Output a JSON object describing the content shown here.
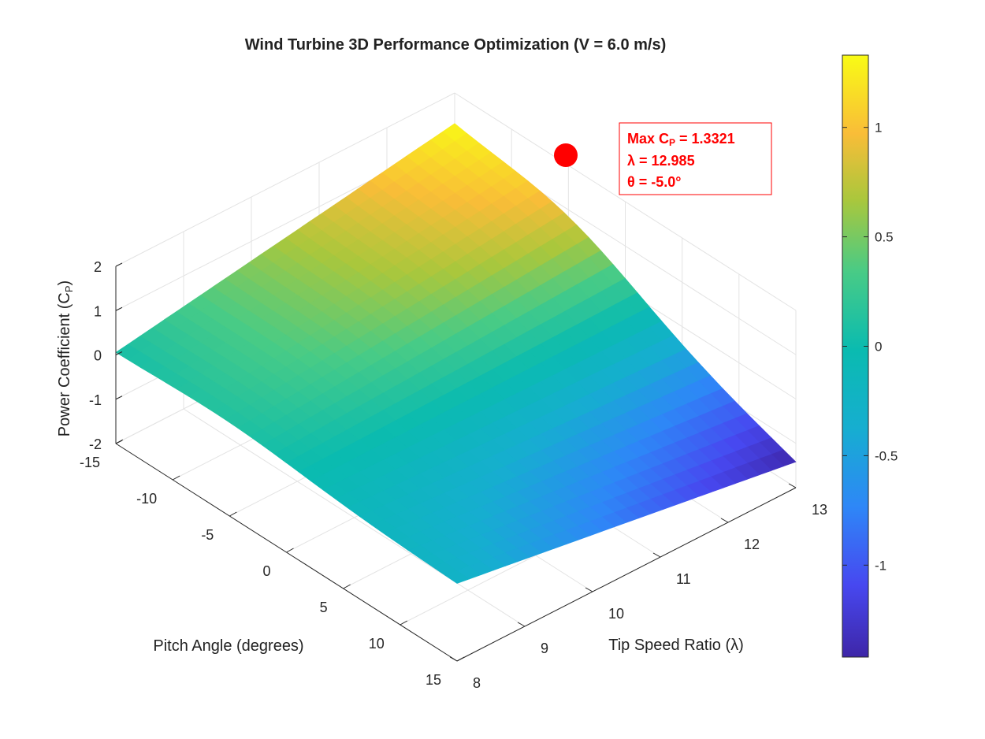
{
  "chart_data": {
    "type": "surface3d",
    "title": "Wind Turbine 3D Performance Optimization (V = 6.0 m/s)",
    "xlabel": "Tip  Speed  Ratio  (λ)",
    "ylabel": "Pitch Angle (degrees)",
    "zlabel": "Power  Coefficient  (C",
    "zlabel_sub": "P",
    "zlabel_close": ")",
    "xlim": [
      8,
      13
    ],
    "ylim": [
      -15,
      15
    ],
    "zlim": [
      -2,
      2
    ],
    "xticks": [
      "8",
      "9",
      "10",
      "11",
      "12",
      "13"
    ],
    "yticks": [
      "-15",
      "-10",
      "-5",
      "0",
      "5",
      "10",
      "15"
    ],
    "zticks": [
      "-2",
      "-1",
      "0",
      "1",
      "2"
    ],
    "grid": true,
    "colormap": "parula",
    "colorbar": {
      "range": [
        -1.42,
        1.33
      ],
      "ticks": [
        "-1",
        "-0.5",
        "0",
        "0.5",
        "1"
      ]
    },
    "surface_corners": [
      {
        "x": 8,
        "y": -15,
        "z": 0.0
      },
      {
        "x": 8,
        "y": 15,
        "z": -0.25
      },
      {
        "x": 13,
        "y": 15,
        "z": -1.42
      },
      {
        "x": 13,
        "y": -15,
        "z": 1.15
      }
    ],
    "maximum": {
      "x": 12.985,
      "y": -5.0,
      "z": 1.3321
    },
    "annotation": {
      "line1_prefix": "Max  C",
      "line1_sub": "P",
      "line1_suffix": "  =  1.3321",
      "line2": "λ  =  12.985",
      "line3": "θ  =  -5.0°"
    },
    "colors": {
      "marker": "#ff0000",
      "annotation": "#ff0000"
    }
  }
}
